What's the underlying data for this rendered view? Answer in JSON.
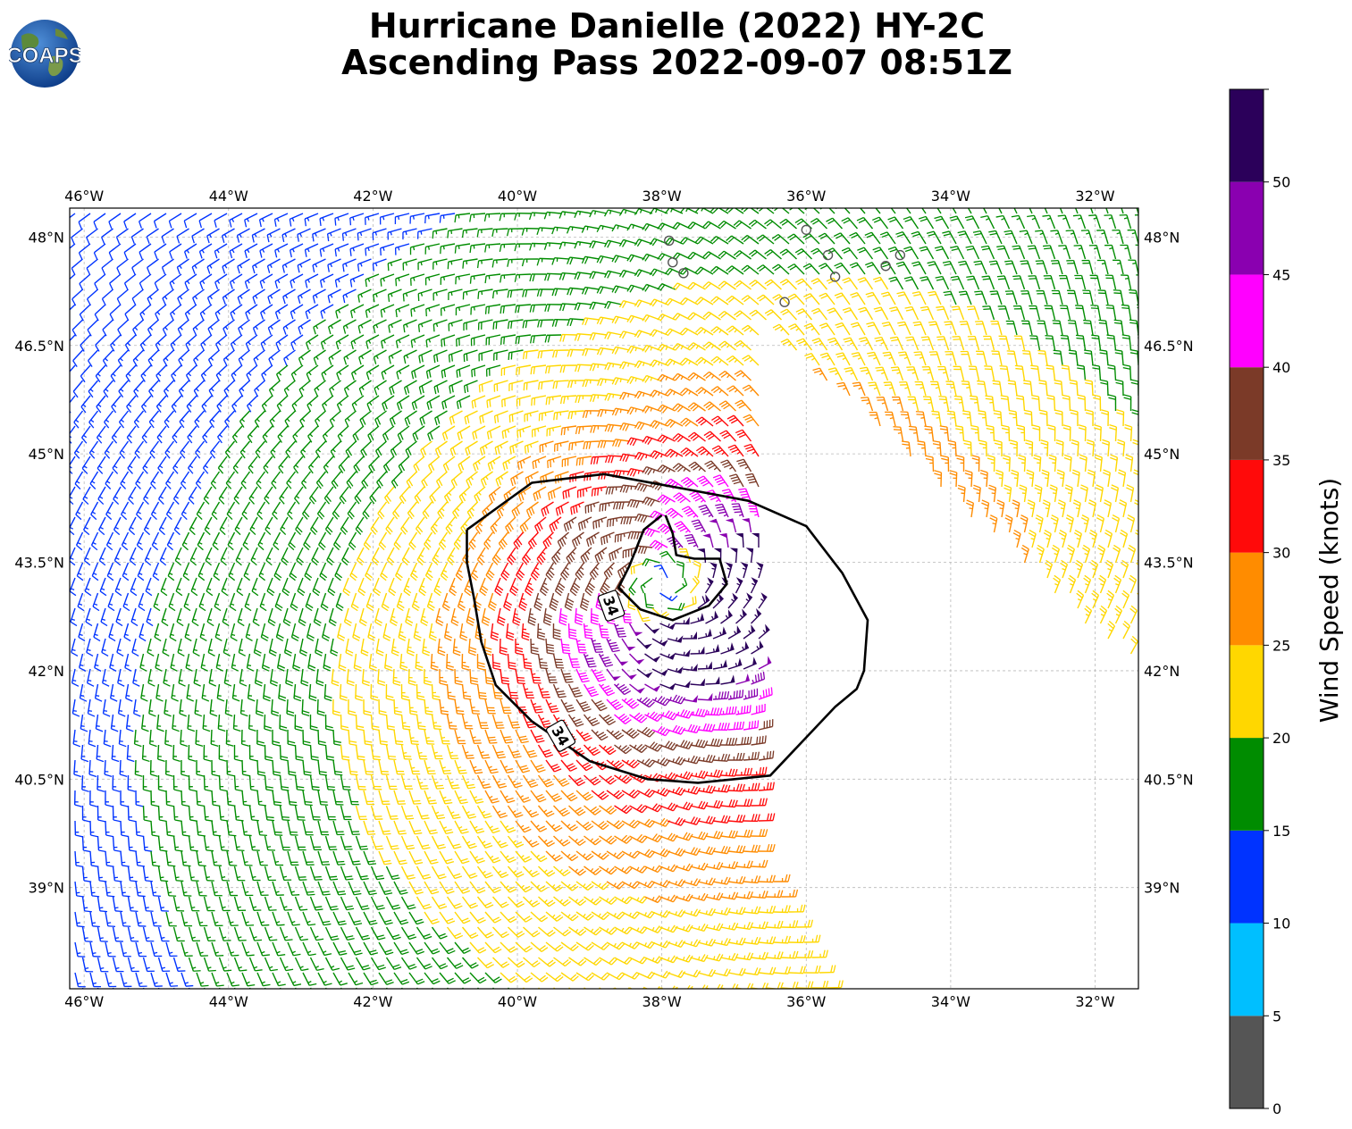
{
  "title": {
    "line1": "Hurricane Danielle (2022) HY-2C",
    "line2": "Ascending Pass 2022-09-07 08:51Z"
  },
  "logo": {
    "text": "COAPS",
    "icon": "globe-icon"
  },
  "map": {
    "lon_range": [
      -46.2,
      -31.4
    ],
    "lat_range": [
      37.6,
      48.4
    ],
    "lon_ticks": [
      "46°W",
      "44°W",
      "42°W",
      "40°W",
      "38°W",
      "36°W",
      "34°W",
      "32°W"
    ],
    "lat_ticks": [
      "48°N",
      "46.5°N",
      "45°N",
      "43.5°N",
      "42°N",
      "40.5°N",
      "39°N"
    ],
    "grid": true,
    "storm_center": {
      "lon": -38.0,
      "lat": 43.2
    },
    "contour_label": "34"
  },
  "colorbar": {
    "label": "Wind Speed (knots)",
    "ticks": [
      "0",
      "5",
      "10",
      "15",
      "20",
      "25",
      "30",
      "35",
      "40",
      "45",
      "50"
    ],
    "bins": [
      {
        "min": 0,
        "max": 5,
        "color": "#555555"
      },
      {
        "min": 5,
        "max": 10,
        "color": "#00bfff"
      },
      {
        "min": 10,
        "max": 15,
        "color": "#0033ff"
      },
      {
        "min": 15,
        "max": 20,
        "color": "#008c00"
      },
      {
        "min": 20,
        "max": 25,
        "color": "#ffd700"
      },
      {
        "min": 25,
        "max": 30,
        "color": "#ff8c00"
      },
      {
        "min": 30,
        "max": 35,
        "color": "#ff0a0a"
      },
      {
        "min": 35,
        "max": 40,
        "color": "#7b3a28"
      },
      {
        "min": 40,
        "max": 45,
        "color": "#ff00ff"
      },
      {
        "min": 45,
        "max": 50,
        "color": "#8a00b0"
      },
      {
        "min": 50,
        "max": 55,
        "color": "#2b005a"
      }
    ]
  }
}
